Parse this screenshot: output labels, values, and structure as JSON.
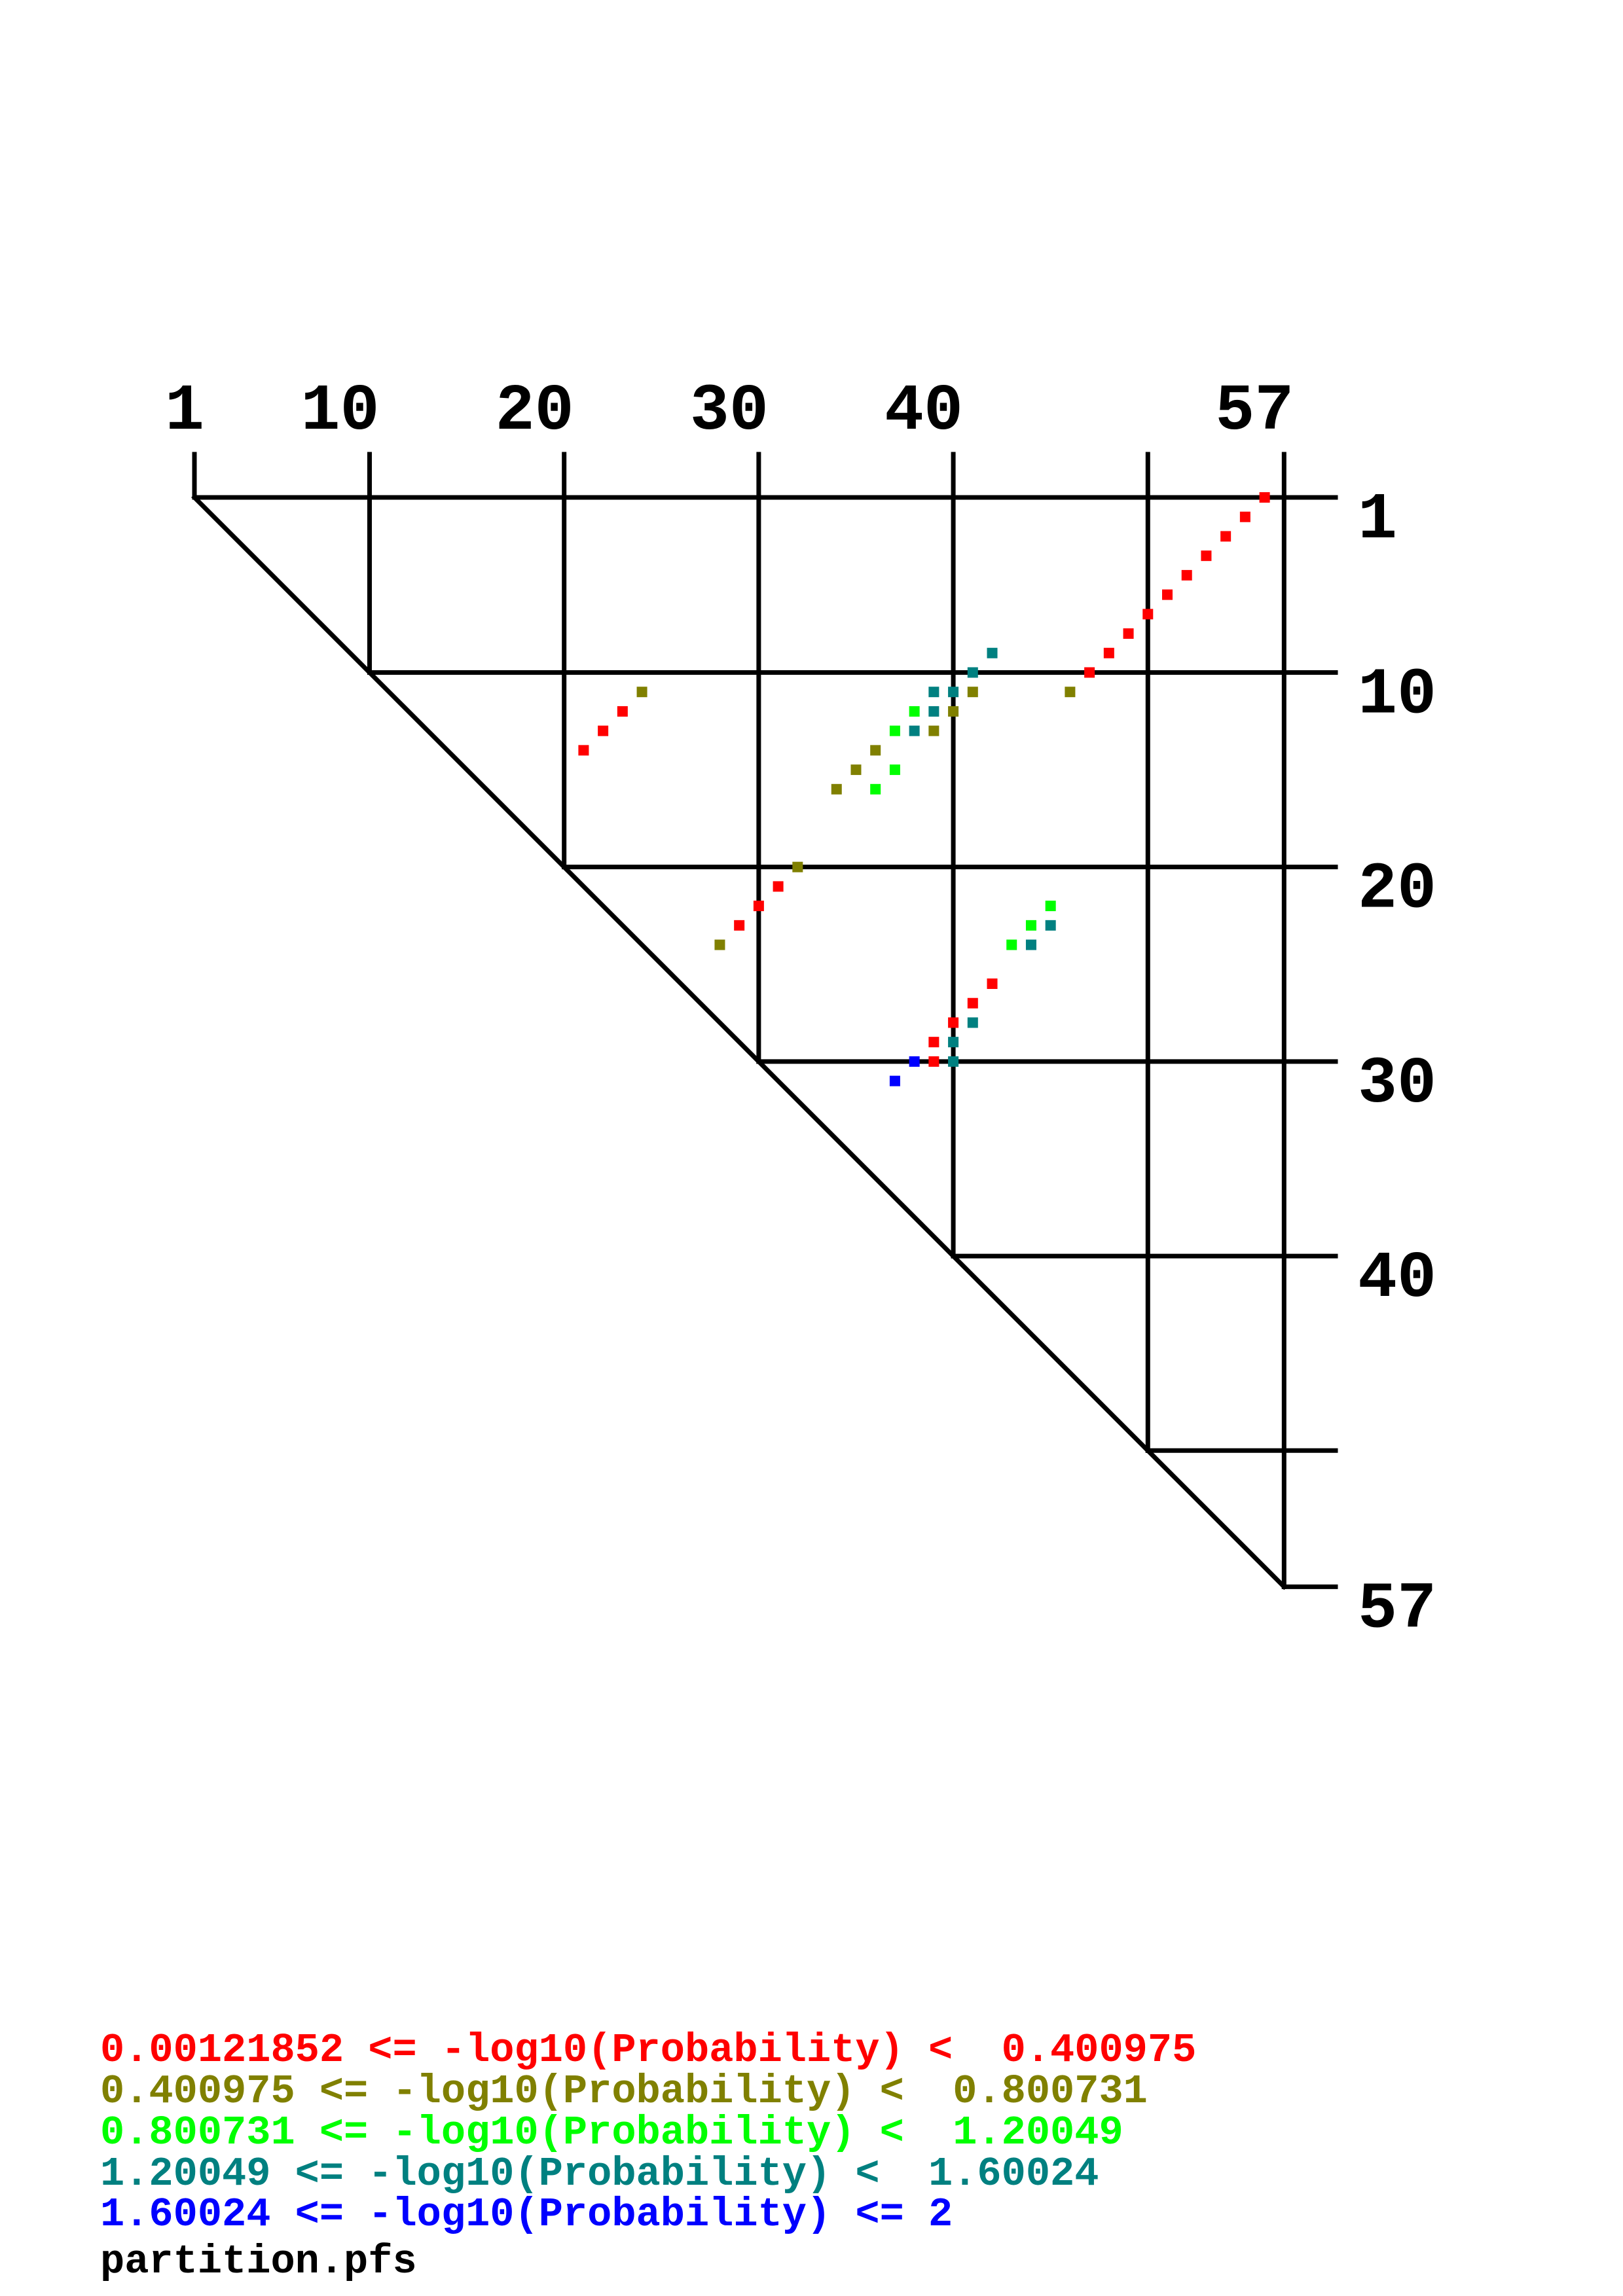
{
  "chart_data": {
    "type": "scatter",
    "title": "",
    "sequence_length": 57,
    "top_ticks": [
      1,
      10,
      20,
      30,
      40,
      57
    ],
    "right_ticks": [
      1,
      10,
      20,
      30,
      40,
      57
    ],
    "gridlines": [
      1,
      10,
      20,
      30,
      40,
      50,
      57
    ],
    "bins": [
      {
        "label": "0.00121852 <= -log10(Probability) <  0.400975",
        "color": "#FF0000"
      },
      {
        "label": "0.400975 <= -log10(Probability) <  0.800731",
        "color": "#808000"
      },
      {
        "label": "0.800731 <= -log10(Probability) <  1.20049",
        "color": "#00FF00"
      },
      {
        "label": "1.20049 <= -log10(Probability) <  1.60024",
        "color": "#008080"
      },
      {
        "label": "1.60024 <= -log10(Probability) <= 2",
        "color": "#0000FF"
      }
    ],
    "points": [
      {
        "i": 1,
        "j": 56,
        "bin": 0
      },
      {
        "i": 2,
        "j": 55,
        "bin": 0
      },
      {
        "i": 3,
        "j": 54,
        "bin": 0
      },
      {
        "i": 4,
        "j": 53,
        "bin": 0
      },
      {
        "i": 5,
        "j": 52,
        "bin": 0
      },
      {
        "i": 6,
        "j": 51,
        "bin": 0
      },
      {
        "i": 7,
        "j": 50,
        "bin": 0
      },
      {
        "i": 8,
        "j": 49,
        "bin": 0
      },
      {
        "i": 9,
        "j": 48,
        "bin": 0
      },
      {
        "i": 10,
        "j": 47,
        "bin": 0
      },
      {
        "i": 11,
        "j": 46,
        "bin": 1
      },
      {
        "i": 9,
        "j": 42,
        "bin": 3
      },
      {
        "i": 10,
        "j": 41,
        "bin": 3
      },
      {
        "i": 11,
        "j": 39,
        "bin": 3
      },
      {
        "i": 11,
        "j": 40,
        "bin": 3
      },
      {
        "i": 11,
        "j": 41,
        "bin": 1
      },
      {
        "i": 12,
        "j": 38,
        "bin": 2
      },
      {
        "i": 12,
        "j": 39,
        "bin": 3
      },
      {
        "i": 12,
        "j": 40,
        "bin": 1
      },
      {
        "i": 13,
        "j": 37,
        "bin": 2
      },
      {
        "i": 13,
        "j": 38,
        "bin": 3
      },
      {
        "i": 13,
        "j": 39,
        "bin": 1
      },
      {
        "i": 14,
        "j": 36,
        "bin": 1
      },
      {
        "i": 15,
        "j": 35,
        "bin": 1
      },
      {
        "i": 15,
        "j": 37,
        "bin": 2
      },
      {
        "i": 16,
        "j": 34,
        "bin": 1
      },
      {
        "i": 16,
        "j": 36,
        "bin": 2
      },
      {
        "i": 11,
        "j": 24,
        "bin": 1
      },
      {
        "i": 12,
        "j": 23,
        "bin": 0
      },
      {
        "i": 13,
        "j": 22,
        "bin": 0
      },
      {
        "i": 14,
        "j": 21,
        "bin": 0
      },
      {
        "i": 20,
        "j": 32,
        "bin": 1
      },
      {
        "i": 21,
        "j": 31,
        "bin": 0
      },
      {
        "i": 22,
        "j": 30,
        "bin": 0
      },
      {
        "i": 23,
        "j": 29,
        "bin": 0
      },
      {
        "i": 24,
        "j": 28,
        "bin": 1
      },
      {
        "i": 22,
        "j": 45,
        "bin": 2
      },
      {
        "i": 23,
        "j": 44,
        "bin": 2
      },
      {
        "i": 23,
        "j": 45,
        "bin": 3
      },
      {
        "i": 24,
        "j": 43,
        "bin": 2
      },
      {
        "i": 24,
        "j": 44,
        "bin": 3
      },
      {
        "i": 26,
        "j": 42,
        "bin": 0
      },
      {
        "i": 27,
        "j": 41,
        "bin": 0
      },
      {
        "i": 28,
        "j": 40,
        "bin": 0
      },
      {
        "i": 28,
        "j": 41,
        "bin": 3
      },
      {
        "i": 29,
        "j": 39,
        "bin": 0
      },
      {
        "i": 29,
        "j": 40,
        "bin": 3
      },
      {
        "i": 30,
        "j": 38,
        "bin": 4
      },
      {
        "i": 30,
        "j": 39,
        "bin": 0
      },
      {
        "i": 30,
        "j": 40,
        "bin": 3
      },
      {
        "i": 31,
        "j": 37,
        "bin": 4
      }
    ],
    "filename": "partition.pfs"
  }
}
